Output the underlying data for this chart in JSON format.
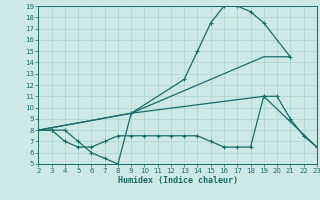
{
  "xlabel": "Humidex (Indice chaleur)",
  "bg_color": "#cce9e5",
  "grid_color": "#aad4cf",
  "line_color": "#1a6b6b",
  "xlim": [
    2,
    23
  ],
  "ylim": [
    5,
    19
  ],
  "xticks": [
    2,
    3,
    4,
    5,
    6,
    7,
    8,
    9,
    10,
    11,
    12,
    13,
    14,
    15,
    16,
    17,
    18,
    19,
    20,
    21,
    22,
    23
  ],
  "yticks": [
    5,
    6,
    7,
    8,
    9,
    10,
    11,
    12,
    13,
    14,
    15,
    16,
    17,
    18,
    19
  ],
  "curve1": {
    "x": [
      2,
      3,
      4,
      5,
      6,
      7,
      8,
      9,
      13,
      14,
      15,
      16,
      17,
      18,
      19,
      21
    ],
    "y": [
      8,
      8,
      8,
      7,
      6,
      5.5,
      5,
      9.5,
      12.5,
      15,
      17.5,
      19,
      19,
      18.5,
      17.5,
      14.5
    ]
  },
  "curve2": {
    "x": [
      2,
      9,
      19,
      21
    ],
    "y": [
      8,
      9.5,
      14.5,
      14.5
    ]
  },
  "curve3": {
    "x": [
      2,
      3,
      4,
      5,
      6,
      7,
      8,
      9,
      10,
      11,
      12,
      13,
      14,
      15,
      16,
      17,
      18,
      19,
      20,
      21,
      22,
      23
    ],
    "y": [
      8,
      8,
      7,
      6.5,
      6.5,
      7,
      7.5,
      7.5,
      7.5,
      7.5,
      7.5,
      7.5,
      7.5,
      7,
      6.5,
      6.5,
      6.5,
      11,
      11,
      9,
      7.5,
      6.5
    ]
  },
  "curve4": {
    "x": [
      2,
      9,
      19,
      23
    ],
    "y": [
      8,
      9.5,
      11,
      6.5
    ]
  }
}
